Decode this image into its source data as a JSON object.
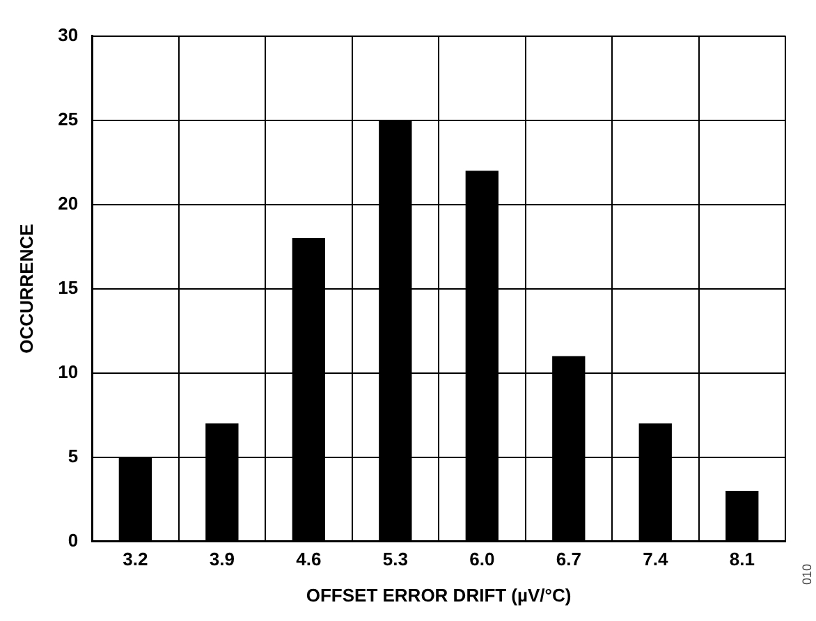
{
  "chart_data": {
    "type": "bar",
    "xlabel": "OFFSET ERROR DRIFT (µV/°C)",
    "ylabel": "OCCURRENCE",
    "categories": [
      "3.2",
      "3.9",
      "4.6",
      "5.3",
      "6.0",
      "6.7",
      "7.4",
      "8.1"
    ],
    "values": [
      5,
      7,
      18,
      25,
      22,
      11,
      7,
      3
    ],
    "color": "#000000",
    "ylim": [
      0,
      30
    ],
    "yticks": [
      0,
      5,
      10,
      15,
      20,
      25,
      30
    ],
    "grid": true,
    "legend": false,
    "annotations": [
      "010"
    ]
  }
}
